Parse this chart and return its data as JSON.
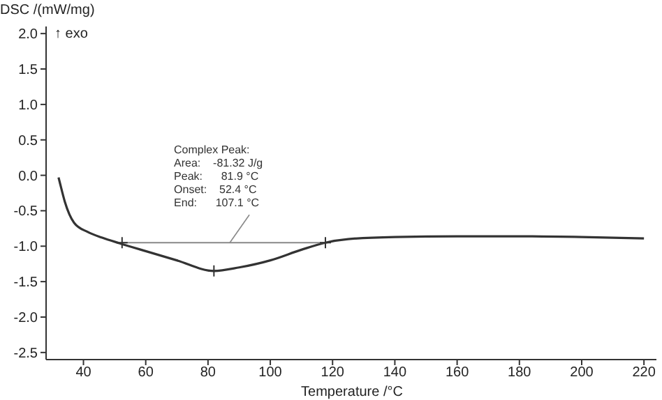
{
  "chart_data": {
    "type": "line",
    "xlabel": "Temperature /°C",
    "ylabel": "DSC /(mW/mg)",
    "xlim": [
      28,
      224
    ],
    "xticks": [
      40,
      60,
      80,
      100,
      120,
      140,
      160,
      180,
      200,
      220
    ],
    "ylim": [
      -2.6,
      2.1
    ],
    "yticks": [
      {
        "value": 2,
        "label": "2.0"
      },
      {
        "value": 1.5,
        "label": "1.5"
      },
      {
        "value": 1,
        "label": "1.0"
      },
      {
        "value": 0.5,
        "label": "0.5"
      },
      {
        "value": 0,
        "label": "0.0"
      },
      {
        "value": -0.5,
        "label": "-0.5"
      },
      {
        "value": -1,
        "label": "-1.0"
      },
      {
        "value": -1.5,
        "label": "-1.5"
      },
      {
        "value": -2,
        "label": "-2.0"
      },
      {
        "value": -2.5,
        "label": "-2.5"
      }
    ],
    "grid": false,
    "series": [
      {
        "color": "#333333",
        "x": [
          32,
          32.4,
          34,
          37,
          41.4,
          46,
          51.7,
          60,
          70,
          81.9,
          90,
          100,
          110,
          117.7,
          125,
          140,
          160,
          180,
          200,
          220
        ],
        "values": [
          -0.03,
          -0.1,
          -0.37,
          -0.67,
          -0.8,
          -0.88,
          -0.96,
          -1.07,
          -1.2,
          -1.35,
          -1.3,
          -1.2,
          -1.05,
          -0.95,
          -0.9,
          -0.87,
          -0.86,
          -0.86,
          -0.87,
          -0.89
        ]
      },
      {
        "color": "#888888",
        "x": [
          52.4,
          117.7
        ],
        "values": [
          -0.95,
          -0.95
        ]
      },
      {
        "type": "scatter",
        "marker": "cross",
        "color": "#333333",
        "x": [
          52.4,
          81.9,
          117.7
        ],
        "values": [
          -0.95,
          -1.35,
          -0.95
        ]
      }
    ],
    "annotations": [
      {
        "text": "Complex Peak:\nArea:    -81.32 J/g\nPeak:      81.9 °C\nOnset:    52.4 °C\nEnd:      107.1 °C",
        "x": 87,
        "y": -0.95
      },
      "↑ exo"
    ]
  }
}
